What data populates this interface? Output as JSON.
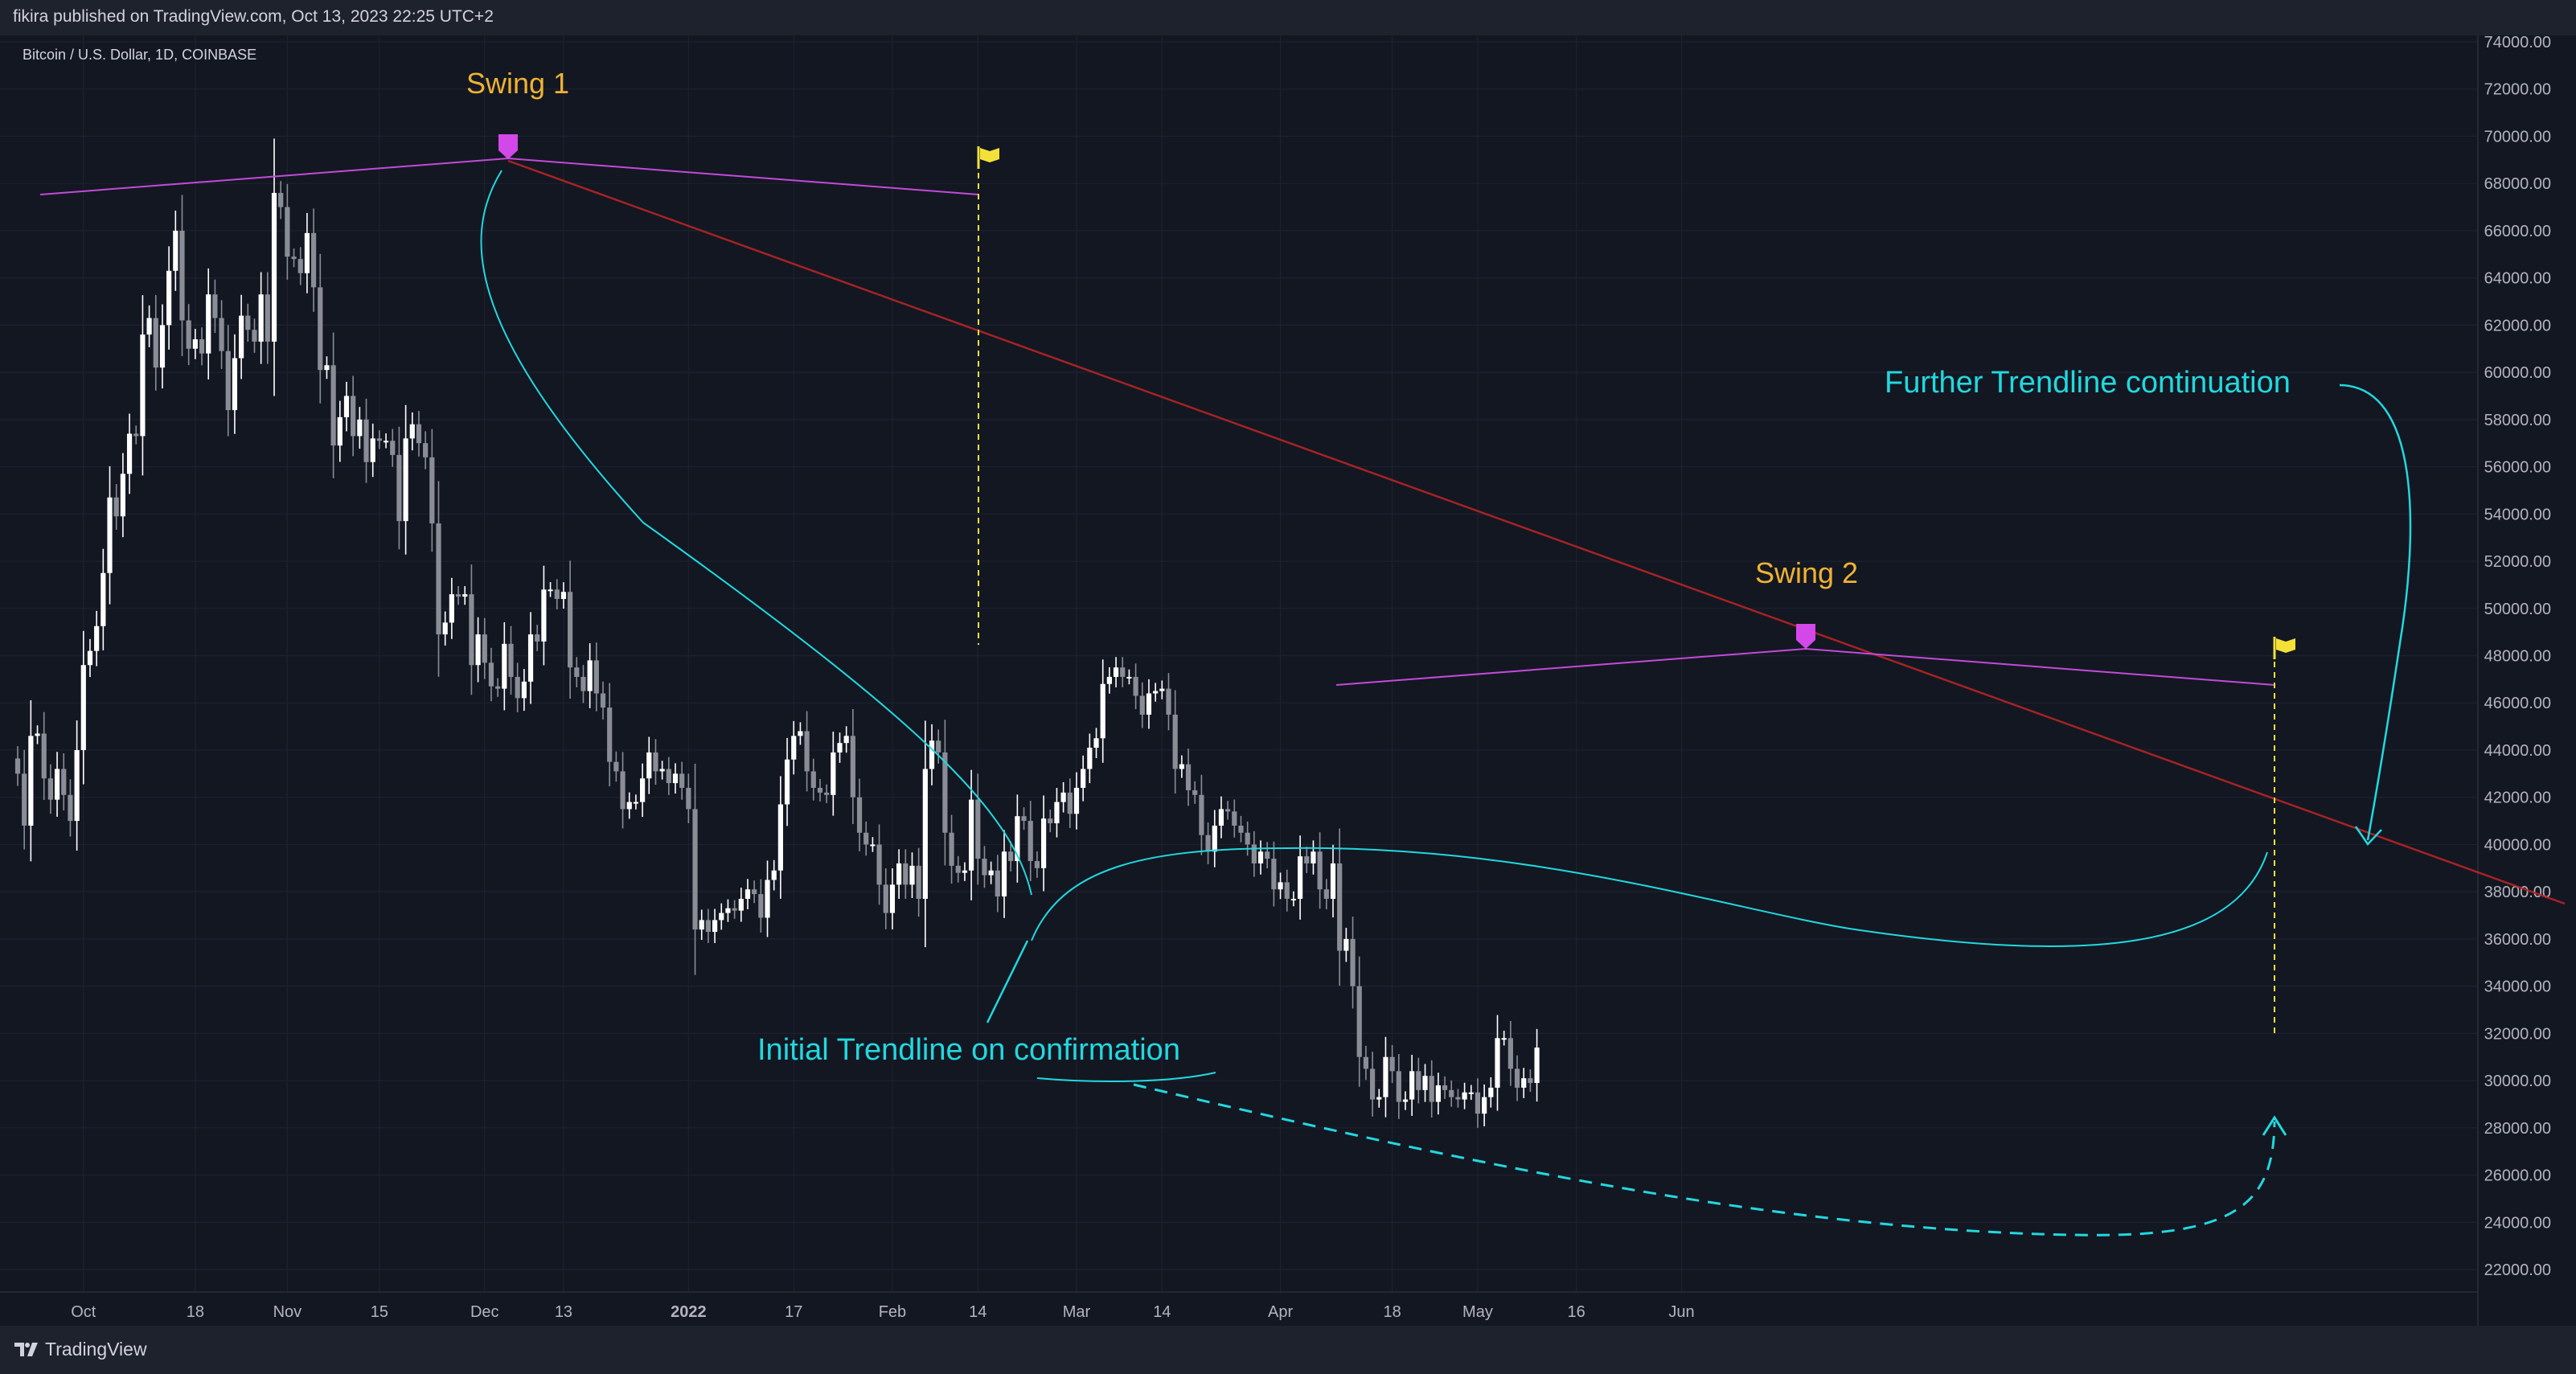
{
  "header": {
    "published": "fikira published on TradingView.com, Oct 13, 2023 22:25 UTC+2"
  },
  "footer": {
    "brand": "TradingView"
  },
  "chart_data": {
    "type": "candlestick",
    "symbol_label": "Bitcoin / U.S. Dollar, 1D, COINBASE",
    "ylim": [
      21000,
      74500
    ],
    "y_ticks": [
      22000,
      24000,
      26000,
      28000,
      30000,
      32000,
      34000,
      36000,
      38000,
      40000,
      42000,
      44000,
      46000,
      48000,
      50000,
      52000,
      54000,
      56000,
      58000,
      60000,
      62000,
      64000,
      66000,
      68000,
      70000,
      72000,
      74000
    ],
    "x_labels": [
      {
        "label": "Oct",
        "date": "2021-10-01"
      },
      {
        "label": "18",
        "date": "2021-10-18"
      },
      {
        "label": "Nov",
        "date": "2021-11-01"
      },
      {
        "label": "15",
        "date": "2021-11-15"
      },
      {
        "label": "Dec",
        "date": "2021-12-01"
      },
      {
        "label": "13",
        "date": "2021-12-13"
      },
      {
        "label": "2022",
        "date": "2022-01-01"
      },
      {
        "label": "17",
        "date": "2022-01-17"
      },
      {
        "label": "Feb",
        "date": "2022-02-01"
      },
      {
        "label": "14",
        "date": "2022-02-14"
      },
      {
        "label": "Mar",
        "date": "2022-03-01"
      },
      {
        "label": "14",
        "date": "2022-03-14"
      },
      {
        "label": "Apr",
        "date": "2022-04-01"
      },
      {
        "label": "18",
        "date": "2022-04-18"
      },
      {
        "label": "May",
        "date": "2022-05-01"
      },
      {
        "label": "16",
        "date": "2022-05-16"
      },
      {
        "label": "Jun",
        "date": "2022-06-01"
      }
    ],
    "start_date": "2021-09-21",
    "closes": [
      43000,
      40800,
      44600,
      44700,
      42800,
      41900,
      43200,
      42100,
      41000,
      44000,
      47600,
      48200,
      49250,
      51500,
      54700,
      53900,
      55700,
      57400,
      57300,
      61600,
      62300,
      60200,
      62000,
      64300,
      66000,
      62200,
      61000,
      61400,
      60800,
      63300,
      62300,
      60900,
      58400,
      60600,
      62400,
      61800,
      61300,
      63300,
      61300,
      67600,
      67000,
      64900,
      64800,
      64200,
      65900,
      63600,
      60100,
      60300,
      56900,
      58100,
      59000,
      57300,
      58000,
      56200,
      57200,
      57100,
      57100,
      56500,
      53700,
      57200,
      57800,
      57000,
      56400,
      53600,
      48900,
      49400,
      50600,
      50500,
      50600,
      47600,
      48900,
      47700,
      46700,
      46600,
      48500,
      47100,
      46200,
      46900,
      48900,
      48600,
      50800,
      50800,
      50400,
      50700,
      47500,
      47100,
      46500,
      47800,
      46400,
      45800,
      43500,
      43100,
      41500,
      41800,
      41800,
      42800,
      43900,
      43100,
      43200,
      42600,
      43000,
      42400,
      41500,
      36400,
      36800,
      36300,
      36800,
      37100,
      37300,
      37200,
      37700,
      38100,
      37900,
      36900,
      38500,
      38900,
      41700,
      43600,
      44600,
      44800,
      43100,
      42400,
      42200,
      42100,
      43900,
      44300,
      44600,
      42000,
      40500,
      40000,
      40000,
      38300,
      37100,
      38300,
      39200,
      38300,
      39100,
      37700,
      43200,
      44400,
      43900,
      40500,
      39100,
      38800,
      38900,
      41900,
      39400,
      38700,
      38900,
      37800,
      39700,
      39300,
      41200,
      41000,
      39300,
      39000,
      41100,
      40900,
      41800,
      42200,
      41300,
      42400,
      43200,
      44100,
      44500,
      46800,
      47100,
      47500,
      47100,
      47100,
      46300,
      45500,
      46400,
      46500,
      46600,
      45500,
      43200,
      43400,
      42300,
      42100,
      40400,
      39700,
      40800,
      41500,
      41400,
      40800,
      40500,
      40000,
      39200,
      39700,
      39400,
      38100,
      38400,
      37700,
      37700,
      39500,
      39200,
      39700,
      38100,
      37700,
      39200,
      35500,
      36000,
      34000,
      31000,
      30500,
      29200,
      29300,
      31000,
      30400,
      29100,
      29200,
      30400,
      29600,
      30200,
      29100,
      29800,
      29600,
      29300,
      29200,
      29500,
      29500,
      28600,
      29300,
      29700,
      31800,
      31800,
      30500,
      29700,
      30100,
      29900,
      31400
    ]
  },
  "annotations": {
    "swing1": "Swing 1",
    "swing2": "Swing 2",
    "initial": "Initial Trendline on confirmation",
    "further": "Further Trendline continuation"
  },
  "colors": {
    "bg": "#131722",
    "bull": "#ffffff",
    "bear": "#8a8d96",
    "swing_label": "#f0b232",
    "cyan": "#22d8df",
    "purple": "#d348e8",
    "trend": "#c02626",
    "flag": "#f3e139",
    "axis_text": "#b2b5be",
    "grid": "#1e2230"
  }
}
